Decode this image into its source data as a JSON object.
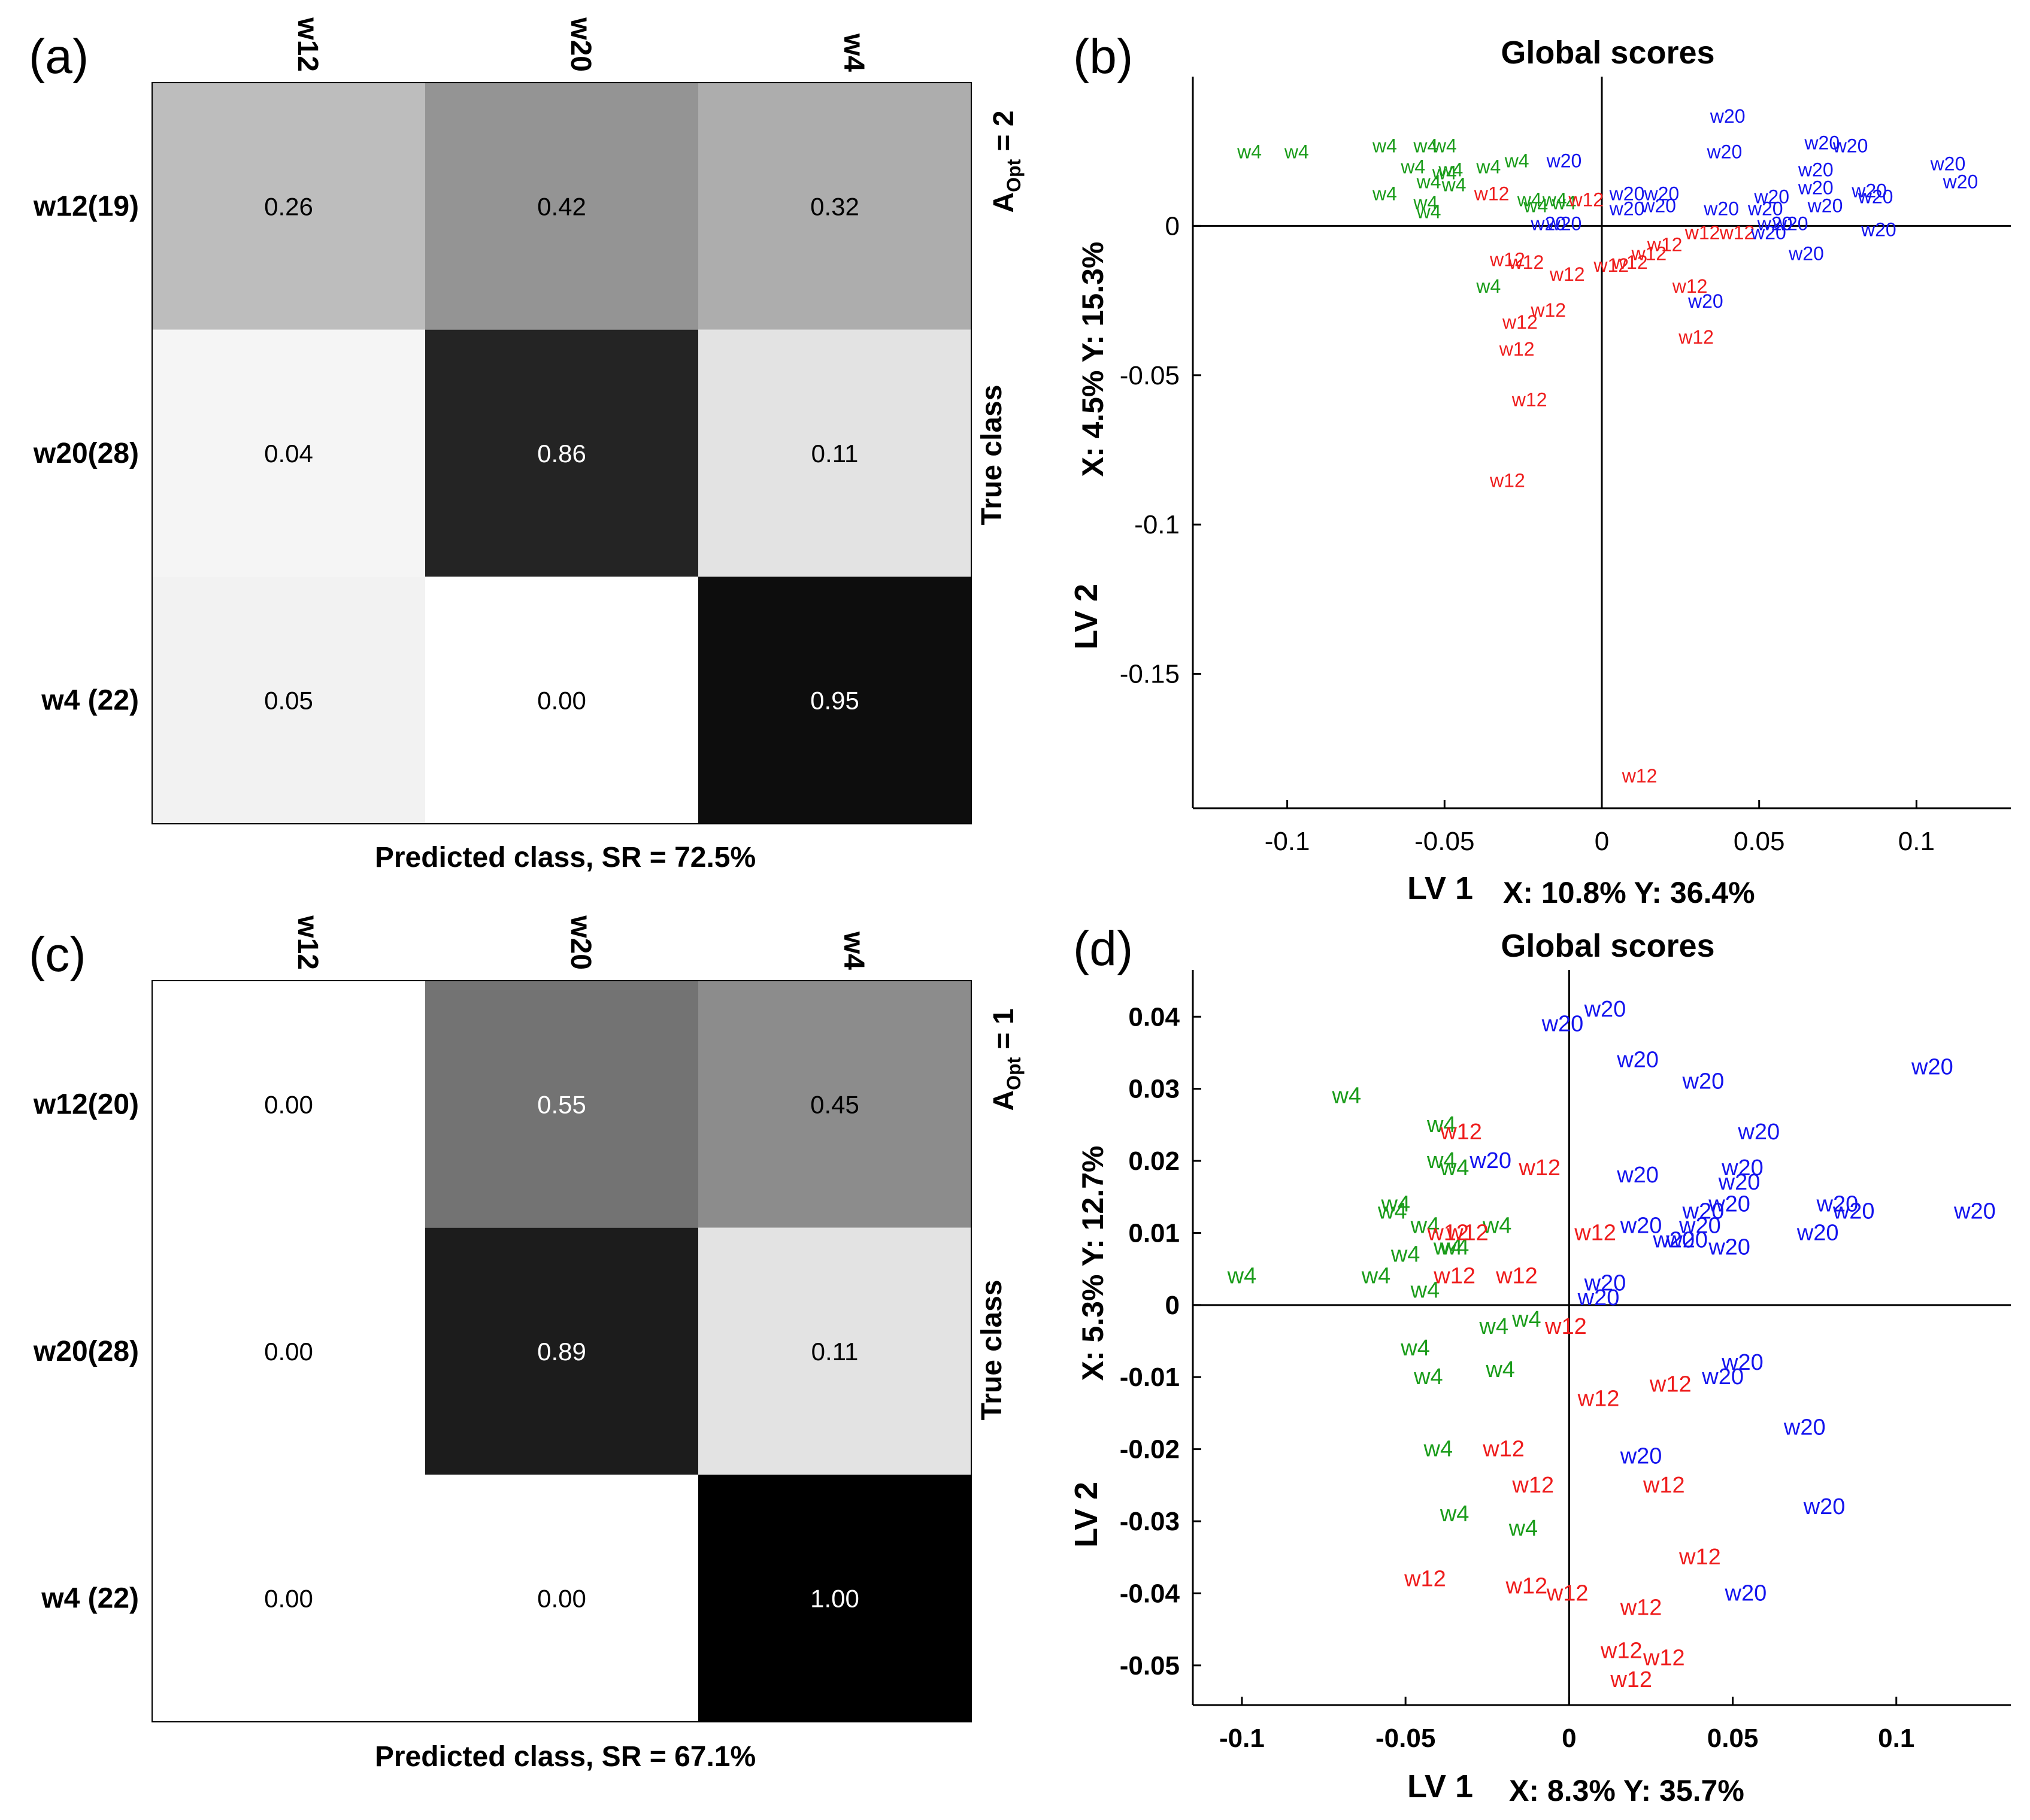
{
  "panels": {
    "a": {
      "label": "(a)",
      "aopt": {
        "prefix": "A",
        "sub": "Opt",
        "suffix": " = 2"
      },
      "true_class_label": "True class",
      "predicted_label": "Predicted class, SR = 72.5%"
    },
    "b": {
      "label": "(b)",
      "xlabel": "LV 1",
      "xpct": "X: 10.8%  Y: 36.4%",
      "ylabel": "LV 2",
      "ypct": "X:  4.5%  Y: 15.3%"
    },
    "c": {
      "label": "(c)",
      "aopt": {
        "prefix": "A",
        "sub": "Opt",
        "suffix": " = 1"
      },
      "true_class_label": "True class",
      "predicted_label": "Predicted class, SR = 67.1%"
    },
    "d": {
      "label": "(d)",
      "xlabel": "LV 1",
      "xpct": "X: 8.3%  Y: 35.7%",
      "ylabel": "LV 2",
      "ypct": "X: 5.3%  Y: 12.7%"
    }
  },
  "chart_data": [
    {
      "id": "a",
      "type": "heatmap",
      "colormap": "grayscale (0 = white, 1 = black)",
      "columns": [
        "w12",
        "w20",
        "w4"
      ],
      "rows": [
        "w12(19)",
        "w20(28)",
        "w4 (22)"
      ],
      "values": [
        [
          0.26,
          0.42,
          0.32
        ],
        [
          0.04,
          0.86,
          0.11
        ],
        [
          0.05,
          0.0,
          0.95
        ]
      ],
      "labels": [
        [
          "0.26",
          "0.42",
          "0.32"
        ],
        [
          "0.04",
          "0.86",
          "0.11"
        ],
        [
          "0.05",
          "0.00",
          "0.95"
        ]
      ]
    },
    {
      "id": "b",
      "type": "scatter",
      "title": "Global scores",
      "xlim": [
        -0.13,
        0.13
      ],
      "ylim": [
        -0.195,
        0.05
      ],
      "xticks": [
        -0.1,
        -0.05,
        0,
        0.05,
        0.1
      ],
      "xtick_labels": [
        "-0.1",
        "-0.05",
        "0",
        "0.05",
        "0.1"
      ],
      "yticks": [
        0,
        -0.05,
        -0.1,
        -0.15
      ],
      "ytick_labels": [
        "0",
        "-0.05",
        "-0.1",
        "-0.15"
      ],
      "colors": {
        "w4": "#1a9c1a",
        "w12": "#ee1c1c",
        "w20": "#1414ee"
      },
      "series": [
        {
          "name": "w4",
          "points": [
            [
              -0.112,
              0.025
            ],
            [
              -0.097,
              0.025
            ],
            [
              -0.069,
              0.027
            ],
            [
              -0.056,
              0.027
            ],
            [
              -0.05,
              0.027
            ],
            [
              -0.06,
              0.02
            ],
            [
              -0.05,
              0.018
            ],
            [
              -0.048,
              0.019
            ],
            [
              -0.036,
              0.02
            ],
            [
              -0.027,
              0.022
            ],
            [
              -0.055,
              0.015
            ],
            [
              -0.047,
              0.014
            ],
            [
              -0.069,
              0.011
            ],
            [
              -0.056,
              0.008
            ],
            [
              -0.055,
              0.005
            ],
            [
              -0.023,
              0.009
            ],
            [
              -0.021,
              0.007
            ],
            [
              -0.015,
              0.009
            ],
            [
              -0.012,
              0.008
            ],
            [
              -0.036,
              -0.02
            ]
          ]
        },
        {
          "name": "w12",
          "points": [
            [
              -0.035,
              0.011
            ],
            [
              -0.005,
              0.009
            ],
            [
              -0.03,
              -0.011
            ],
            [
              -0.024,
              -0.012
            ],
            [
              -0.011,
              -0.016
            ],
            [
              0.003,
              -0.013
            ],
            [
              0.009,
              -0.012
            ],
            [
              0.015,
              -0.009
            ],
            [
              0.02,
              -0.006
            ],
            [
              0.032,
              -0.002
            ],
            [
              0.043,
              -0.002
            ],
            [
              0.028,
              -0.02
            ],
            [
              -0.017,
              -0.028
            ],
            [
              -0.026,
              -0.032
            ],
            [
              -0.027,
              -0.041
            ],
            [
              0.03,
              -0.037
            ],
            [
              -0.023,
              -0.058
            ],
            [
              -0.03,
              -0.085
            ],
            [
              0.012,
              -0.184
            ]
          ]
        },
        {
          "name": "w20",
          "points": [
            [
              0.04,
              0.037
            ],
            [
              0.039,
              0.025
            ],
            [
              0.07,
              0.028
            ],
            [
              0.079,
              0.027
            ],
            [
              0.11,
              0.021
            ],
            [
              0.114,
              0.015
            ],
            [
              0.068,
              0.019
            ],
            [
              0.068,
              0.013
            ],
            [
              0.085,
              0.012
            ],
            [
              -0.012,
              0.022
            ],
            [
              0.008,
              0.011
            ],
            [
              0.019,
              0.011
            ],
            [
              0.054,
              0.01
            ],
            [
              0.008,
              0.006
            ],
            [
              0.018,
              0.007
            ],
            [
              0.038,
              0.006
            ],
            [
              0.052,
              0.006
            ],
            [
              0.071,
              0.007
            ],
            [
              0.087,
              0.01
            ],
            [
              0.055,
              0.001
            ],
            [
              0.06,
              0.001
            ],
            [
              0.053,
              -0.002
            ],
            [
              -0.017,
              0.001
            ],
            [
              -0.012,
              0.001
            ],
            [
              0.088,
              -0.001
            ],
            [
              0.065,
              -0.009
            ],
            [
              0.033,
              -0.025
            ]
          ]
        }
      ]
    },
    {
      "id": "c",
      "type": "heatmap",
      "colormap": "grayscale (0 = white, 1 = black)",
      "columns": [
        "w12",
        "w20",
        "w4"
      ],
      "rows": [
        "w12(20)",
        "w20(28)",
        "w4 (22)"
      ],
      "values": [
        [
          0.0,
          0.55,
          0.45
        ],
        [
          0.0,
          0.89,
          0.11
        ],
        [
          0.0,
          0.0,
          1.0
        ]
      ],
      "labels": [
        [
          "0.00",
          "0.55",
          "0.45"
        ],
        [
          "0.00",
          "0.89",
          "0.11"
        ],
        [
          "0.00",
          "0.00",
          "1.00"
        ]
      ]
    },
    {
      "id": "d",
      "type": "scatter",
      "title": "Global scores",
      "xlim": [
        -0.115,
        0.135
      ],
      "ylim": [
        -0.0555,
        0.0465
      ],
      "xticks": [
        -0.1,
        -0.05,
        0,
        0.05,
        0.1
      ],
      "xtick_labels": [
        "-0.1",
        "-0.05",
        "0",
        "0.05",
        "0.1"
      ],
      "yticks": [
        0.04,
        0.03,
        0.02,
        0.01,
        0,
        -0.01,
        -0.02,
        -0.03,
        -0.04,
        -0.05
      ],
      "ytick_labels": [
        "0.04",
        "0.03",
        "0.02",
        "0.01",
        "0",
        "-0.01",
        "-0.02",
        "-0.03",
        "-0.04",
        "-0.05"
      ],
      "colors": {
        "w4": "#1a9c1a",
        "w12": "#ee1c1c",
        "w20": "#1414ee"
      },
      "series": [
        {
          "name": "w4",
          "points": [
            [
              -0.068,
              0.029
            ],
            [
              -0.039,
              0.025
            ],
            [
              -0.039,
              0.02
            ],
            [
              -0.035,
              0.019
            ],
            [
              -0.053,
              0.014
            ],
            [
              -0.054,
              0.013
            ],
            [
              -0.044,
              0.011
            ],
            [
              -0.022,
              0.011
            ],
            [
              -0.037,
              0.008
            ],
            [
              -0.035,
              0.008
            ],
            [
              -0.05,
              0.007
            ],
            [
              -0.1,
              0.004
            ],
            [
              -0.059,
              0.004
            ],
            [
              -0.044,
              0.002
            ],
            [
              -0.023,
              -0.003
            ],
            [
              -0.013,
              -0.002
            ],
            [
              -0.047,
              -0.006
            ],
            [
              -0.043,
              -0.01
            ],
            [
              -0.021,
              -0.009
            ],
            [
              -0.04,
              -0.02
            ],
            [
              -0.035,
              -0.029
            ],
            [
              -0.014,
              -0.031
            ]
          ]
        },
        {
          "name": "w12",
          "points": [
            [
              -0.033,
              0.024
            ],
            [
              -0.009,
              0.019
            ],
            [
              -0.037,
              0.01
            ],
            [
              -0.031,
              0.01
            ],
            [
              0.008,
              0.01
            ],
            [
              -0.035,
              0.004
            ],
            [
              -0.016,
              0.004
            ],
            [
              -0.001,
              -0.003
            ],
            [
              0.009,
              -0.013
            ],
            [
              0.031,
              -0.011
            ],
            [
              -0.02,
              -0.02
            ],
            [
              -0.011,
              -0.025
            ],
            [
              0.029,
              -0.025
            ],
            [
              0.04,
              -0.035
            ],
            [
              -0.044,
              -0.038
            ],
            [
              -0.013,
              -0.039
            ],
            [
              -0.0005,
              -0.04
            ],
            [
              0.022,
              -0.042
            ],
            [
              0.029,
              -0.049
            ],
            [
              0.016,
              -0.048
            ],
            [
              0.019,
              -0.052
            ]
          ]
        },
        {
          "name": "w20",
          "points": [
            [
              0.011,
              0.041
            ],
            [
              -0.002,
              0.039
            ],
            [
              0.021,
              0.034
            ],
            [
              0.041,
              0.031
            ],
            [
              0.111,
              0.033
            ],
            [
              0.058,
              0.024
            ],
            [
              -0.024,
              0.02
            ],
            [
              0.021,
              0.018
            ],
            [
              0.053,
              0.019
            ],
            [
              0.052,
              0.017
            ],
            [
              0.049,
              0.014
            ],
            [
              0.041,
              0.013
            ],
            [
              0.082,
              0.014
            ],
            [
              0.087,
              0.013
            ],
            [
              0.124,
              0.013
            ],
            [
              0.04,
              0.011
            ],
            [
              0.022,
              0.011
            ],
            [
              0.032,
              0.009
            ],
            [
              0.036,
              0.009
            ],
            [
              0.049,
              0.008
            ],
            [
              0.076,
              0.01
            ],
            [
              0.011,
              0.003
            ],
            [
              0.009,
              0.001
            ],
            [
              0.053,
              -0.008
            ],
            [
              0.047,
              -0.01
            ],
            [
              0.072,
              -0.017
            ],
            [
              0.022,
              -0.021
            ],
            [
              0.078,
              -0.028
            ],
            [
              0.054,
              -0.04
            ]
          ]
        }
      ]
    }
  ]
}
